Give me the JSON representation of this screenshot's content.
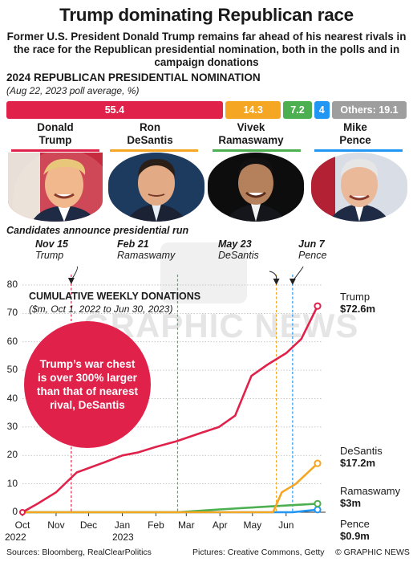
{
  "header": {
    "title": "Trump dominating Republican race",
    "subtitle": "Former U.S. President Donald Trump remains far ahead of his nearest rivals in the race for the Republican presidential nomination, both in the polls and in campaign donations"
  },
  "poll": {
    "heading": "2024 REPUBLICAN PRESIDENTIAL NOMINATION",
    "subheading": "(Aug 22, 2023 poll average, %)",
    "bars": [
      {
        "label": "55.4",
        "value": 55.4,
        "color": "#e0224b"
      },
      {
        "label": "14.3",
        "value": 14.3,
        "color": "#f5a623"
      },
      {
        "label": "7.2",
        "value": 7.2,
        "color": "#4caf50"
      },
      {
        "label": "4",
        "value": 4,
        "color": "#2196f3"
      },
      {
        "label": "Others: 19.1",
        "value": 19.1,
        "color": "#9e9e9e"
      }
    ]
  },
  "candidates": [
    {
      "first": "Donald",
      "last": "Trump",
      "color": "#e0224b"
    },
    {
      "first": "Ron",
      "last": "DeSantis",
      "color": "#f5a623"
    },
    {
      "first": "Vivek",
      "last": "Ramaswamy",
      "color": "#4caf50"
    },
    {
      "first": "Mike",
      "last": "Pence",
      "color": "#2196f3"
    }
  ],
  "announcements": {
    "heading": "Candidates announce presidential run",
    "events": [
      {
        "date": "Nov 15",
        "name": "Trump"
      },
      {
        "date": "Feb 21",
        "name": "Ramaswamy"
      },
      {
        "date": "May 23",
        "name": "DeSantis"
      },
      {
        "date": "Jun 7",
        "name": "Pence"
      }
    ]
  },
  "donations": {
    "heading": "CUMULATIVE WEEKLY DONATIONS",
    "subheading": "($m, Oct 1, 2022 to Jun 30, 2023)",
    "callout": "Trump’s war chest is over 300% larger than that of nearest rival, DeSantis",
    "end_labels": [
      {
        "name": "Trump",
        "value": "$72.6m"
      },
      {
        "name": "DeSantis",
        "value": "$17.2m"
      },
      {
        "name": "Ramaswamy",
        "value": "$3m"
      },
      {
        "name": "Pence",
        "value": "$0.9m"
      }
    ]
  },
  "chart_data": {
    "type": "line",
    "title": "CUMULATIVE WEEKLY DONATIONS",
    "subtitle": "($m, Oct 1, 2022 to Jun 30, 2023)",
    "xlabel": "",
    "ylabel": "",
    "x_ticks": [
      "Oct",
      "Nov",
      "Dec",
      "Jan",
      "Feb",
      "Mar",
      "Apr",
      "May",
      "Jun"
    ],
    "x_year_labels": [
      "2022",
      "2023"
    ],
    "y_ticks": [
      0,
      10,
      20,
      30,
      40,
      50,
      60,
      70,
      80
    ],
    "ylim": [
      0,
      80
    ],
    "x_range": [
      "2022-10-01",
      "2023-06-30"
    ],
    "grid": true,
    "series": [
      {
        "name": "Trump",
        "color": "#e0224b",
        "points": [
          [
            "2022-10-01",
            0
          ],
          [
            "2022-10-15",
            3
          ],
          [
            "2022-11-01",
            7
          ],
          [
            "2022-11-20",
            14
          ],
          [
            "2022-12-15",
            17.5
          ],
          [
            "2023-01-01",
            20
          ],
          [
            "2023-01-15",
            21
          ],
          [
            "2023-02-01",
            23
          ],
          [
            "2023-02-20",
            25
          ],
          [
            "2023-03-15",
            28
          ],
          [
            "2023-03-31",
            30
          ],
          [
            "2023-04-15",
            34
          ],
          [
            "2023-04-30",
            48
          ],
          [
            "2023-05-15",
            52
          ],
          [
            "2023-06-01",
            56
          ],
          [
            "2023-06-15",
            61
          ],
          [
            "2023-06-30",
            72.6
          ]
        ]
      },
      {
        "name": "DeSantis",
        "color": "#f5a623",
        "points": [
          [
            "2022-10-01",
            0
          ],
          [
            "2023-05-20",
            0
          ],
          [
            "2023-05-28",
            7
          ],
          [
            "2023-06-10",
            10
          ],
          [
            "2023-06-30",
            17.2
          ]
        ]
      },
      {
        "name": "Ramaswamy",
        "color": "#4caf50",
        "points": [
          [
            "2022-10-01",
            0
          ],
          [
            "2023-02-21",
            0
          ],
          [
            "2023-04-01",
            1
          ],
          [
            "2023-05-15",
            2
          ],
          [
            "2023-06-30",
            3
          ]
        ]
      },
      {
        "name": "Pence",
        "color": "#2196f3",
        "points": [
          [
            "2022-10-01",
            0
          ],
          [
            "2023-06-07",
            0
          ],
          [
            "2023-06-30",
            0.9
          ]
        ]
      }
    ],
    "announcement_markers": [
      {
        "date": "2022-11-15",
        "name": "Trump",
        "color": "#e0224b"
      },
      {
        "date": "2023-02-21",
        "name": "Ramaswamy",
        "color": "#4caf50"
      },
      {
        "date": "2023-05-23",
        "name": "DeSantis",
        "color": "#f5a623"
      },
      {
        "date": "2023-06-07",
        "name": "Pence",
        "color": "#2196f3"
      }
    ]
  },
  "footer": {
    "sources": "Sources: Bloomberg, RealClearPolitics",
    "pictures": "Pictures: Creative Commons, Getty",
    "credit": "© GRAPHIC NEWS"
  },
  "watermark": {
    "text": "GRAPHIC NEWS"
  }
}
